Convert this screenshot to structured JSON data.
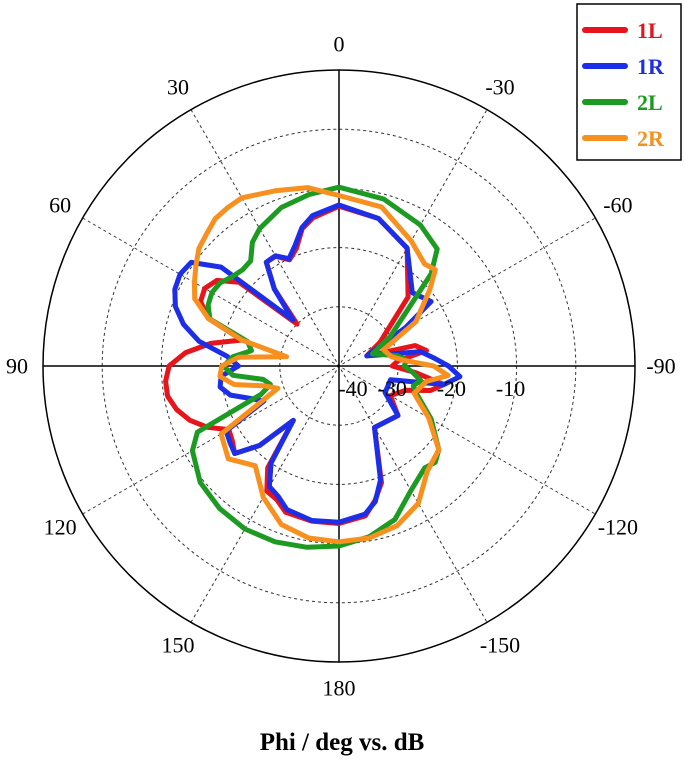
{
  "chart_data": {
    "type": "polar-line",
    "title": "",
    "xlabel": "Phi / deg vs. dB",
    "angle_labels": [
      {
        "angle": 0,
        "text": "0"
      },
      {
        "angle": 30,
        "text": "30"
      },
      {
        "angle": 60,
        "text": "60"
      },
      {
        "angle": 90,
        "text": "90"
      },
      {
        "angle": 120,
        "text": "120"
      },
      {
        "angle": 150,
        "text": "150"
      },
      {
        "angle": 180,
        "text": "180"
      },
      {
        "angle": -150,
        "text": "-150"
      },
      {
        "angle": -120,
        "text": "-120"
      },
      {
        "angle": -90,
        "text": "-90"
      },
      {
        "angle": -60,
        "text": "-60"
      },
      {
        "angle": -30,
        "text": "-30"
      }
    ],
    "radial_range_dB": [
      -40,
      10
    ],
    "radial_tick_labels": [
      "-40",
      "-30",
      "-20",
      "-10"
    ],
    "grid": true,
    "legend_position": "top-right",
    "series": [
      {
        "name": "1L",
        "color": "#e8141c",
        "points": [
          [
            0,
            -13
          ],
          [
            10,
            -14.6
          ],
          [
            15,
            -16
          ],
          [
            20,
            -18.9
          ],
          [
            25,
            -20.2
          ],
          [
            30,
            -18.6
          ],
          [
            35,
            -18.6
          ],
          [
            40,
            -23
          ],
          [
            45,
            -30
          ],
          [
            50,
            -18
          ],
          [
            55,
            -14.8
          ],
          [
            60,
            -13.8
          ],
          [
            65,
            -14.2
          ],
          [
            70,
            -16.5
          ],
          [
            75,
            -23
          ],
          [
            80,
            -18
          ],
          [
            85,
            -14
          ],
          [
            90,
            -11.3
          ],
          [
            95,
            -10.6
          ],
          [
            100,
            -10.6
          ],
          [
            105,
            -11.6
          ],
          [
            110,
            -13.2
          ],
          [
            115,
            -15.5
          ],
          [
            120,
            -18.5
          ],
          [
            125,
            -18
          ],
          [
            130,
            -17
          ],
          [
            135,
            -21
          ],
          [
            140,
            -28
          ],
          [
            145,
            -19
          ],
          [
            150,
            -15.6
          ],
          [
            155,
            -15.1
          ],
          [
            160,
            -13.7
          ],
          [
            170,
            -13.4
          ],
          [
            180,
            -13.4
          ],
          [
            190,
            -14.3
          ],
          [
            195,
            -16.5
          ],
          [
            200,
            -19
          ],
          [
            210,
            -28
          ],
          [
            230,
            -27
          ],
          [
            240,
            -30
          ],
          [
            250,
            -28
          ],
          [
            255,
            -24
          ],
          [
            260,
            -22
          ],
          [
            265,
            -27
          ],
          [
            270,
            -31
          ],
          [
            275,
            -30
          ],
          [
            280,
            -25
          ],
          [
            285,
            -26.7
          ],
          [
            290,
            -35
          ],
          [
            300,
            -32
          ],
          [
            315,
            -23.5
          ],
          [
            330,
            -17
          ],
          [
            345,
            -14.2
          ],
          [
            360,
            -13
          ]
        ]
      },
      {
        "name": "1R",
        "color": "#1c2ee8",
        "points": [
          [
            0,
            -12.8
          ],
          [
            10,
            -14.2
          ],
          [
            15,
            -15.8
          ],
          [
            20,
            -18.3
          ],
          [
            25,
            -20
          ],
          [
            30,
            -18.5
          ],
          [
            35,
            -18.6
          ],
          [
            40,
            -23
          ],
          [
            45,
            -29
          ],
          [
            50,
            -14
          ],
          [
            55,
            -9.5
          ],
          [
            60,
            -9
          ],
          [
            65,
            -9.4
          ],
          [
            70,
            -10.6
          ],
          [
            75,
            -12.8
          ],
          [
            80,
            -16
          ],
          [
            85,
            -21
          ],
          [
            90,
            -23
          ],
          [
            95,
            -20
          ],
          [
            100,
            -19.6
          ],
          [
            105,
            -21
          ],
          [
            110,
            -24
          ],
          [
            115,
            -26
          ],
          [
            120,
            -18
          ],
          [
            125,
            -17.5
          ],
          [
            130,
            -17
          ],
          [
            135,
            -21
          ],
          [
            140,
            -28
          ],
          [
            145,
            -20
          ],
          [
            150,
            -16.5
          ],
          [
            155,
            -15.7
          ],
          [
            160,
            -14.2
          ],
          [
            170,
            -13.5
          ],
          [
            180,
            -13.6
          ],
          [
            190,
            -14.6
          ],
          [
            195,
            -16.3
          ],
          [
            200,
            -19.5
          ],
          [
            210,
            -28
          ],
          [
            230,
            -27
          ],
          [
            240,
            -31
          ],
          [
            255,
            -31
          ],
          [
            260,
            -22
          ],
          [
            265,
            -19.5
          ],
          [
            270,
            -21.5
          ],
          [
            275,
            -24
          ],
          [
            280,
            -26
          ],
          [
            290,
            -35
          ],
          [
            300,
            -27
          ],
          [
            305,
            -21
          ],
          [
            315,
            -22.5
          ],
          [
            330,
            -17
          ],
          [
            345,
            -14.2
          ],
          [
            360,
            -12.8
          ]
        ]
      },
      {
        "name": "2L",
        "color": "#1c9a22",
        "points": [
          [
            0,
            -9.8
          ],
          [
            10,
            -10.6
          ],
          [
            20,
            -11.5
          ],
          [
            30,
            -13.2
          ],
          [
            35,
            -14.5
          ],
          [
            40,
            -16.8
          ],
          [
            45,
            -17
          ],
          [
            50,
            -16.5
          ],
          [
            55,
            -15.5
          ],
          [
            60,
            -15.2
          ],
          [
            65,
            -15.6
          ],
          [
            70,
            -16.8
          ],
          [
            75,
            -24
          ],
          [
            80,
            -25
          ],
          [
            85,
            -22
          ],
          [
            90,
            -20.5
          ],
          [
            95,
            -22
          ],
          [
            100,
            -27
          ],
          [
            105,
            -28
          ],
          [
            110,
            -26
          ],
          [
            115,
            -13.6
          ],
          [
            120,
            -11.4
          ],
          [
            130,
            -9.4
          ],
          [
            140,
            -8.6
          ],
          [
            150,
            -8.2
          ],
          [
            160,
            -8.4
          ],
          [
            170,
            -8.9
          ],
          [
            180,
            -9.6
          ],
          [
            190,
            -10.7
          ],
          [
            200,
            -12.4
          ],
          [
            210,
            -15.7
          ],
          [
            220,
            -17.5
          ],
          [
            225,
            -17
          ],
          [
            230,
            -18
          ],
          [
            240,
            -22
          ],
          [
            250,
            -26
          ],
          [
            255,
            -27
          ],
          [
            260,
            -26
          ],
          [
            265,
            -27.5
          ],
          [
            270,
            -29
          ],
          [
            275,
            -28.5
          ],
          [
            280,
            -30
          ],
          [
            290,
            -34
          ],
          [
            300,
            -30
          ],
          [
            315,
            -18
          ],
          [
            320,
            -14.2
          ],
          [
            330,
            -12.5
          ],
          [
            345,
            -10.8
          ],
          [
            360,
            -9.8
          ]
        ]
      },
      {
        "name": "2R",
        "color": "#f7901e",
        "points": [
          [
            0,
            -11.2
          ],
          [
            10,
            -9.4
          ],
          [
            20,
            -8.5
          ],
          [
            30,
            -7.2
          ],
          [
            35,
            -7.3
          ],
          [
            40,
            -7.5
          ],
          [
            45,
            -8.4
          ],
          [
            50,
            -9.1
          ],
          [
            55,
            -10.5
          ],
          [
            60,
            -11.8
          ],
          [
            65,
            -13.1
          ],
          [
            70,
            -16.5
          ],
          [
            75,
            -23
          ],
          [
            80,
            -31
          ],
          [
            85,
            -23
          ],
          [
            90,
            -20.2
          ],
          [
            95,
            -19.8
          ],
          [
            100,
            -22
          ],
          [
            105,
            -27
          ],
          [
            110,
            -29
          ],
          [
            120,
            -17
          ],
          [
            130,
            -15.6
          ],
          [
            140,
            -18
          ],
          [
            150,
            -14.4
          ],
          [
            160,
            -11.5
          ],
          [
            170,
            -10.5
          ],
          [
            180,
            -10.3
          ],
          [
            190,
            -10.5
          ],
          [
            200,
            -11.3
          ],
          [
            210,
            -13.2
          ],
          [
            220,
            -16.8
          ],
          [
            230,
            -18
          ],
          [
            240,
            -22.5
          ],
          [
            250,
            -26.5
          ],
          [
            260,
            -25
          ],
          [
            265,
            -21.5
          ],
          [
            270,
            -24
          ],
          [
            275,
            -29
          ],
          [
            280,
            -31
          ],
          [
            290,
            -32
          ],
          [
            300,
            -25
          ],
          [
            310,
            -20
          ],
          [
            315,
            -17
          ],
          [
            320,
            -17.5
          ],
          [
            330,
            -15.6
          ],
          [
            345,
            -12.2
          ],
          [
            360,
            -11.2
          ]
        ]
      }
    ]
  }
}
